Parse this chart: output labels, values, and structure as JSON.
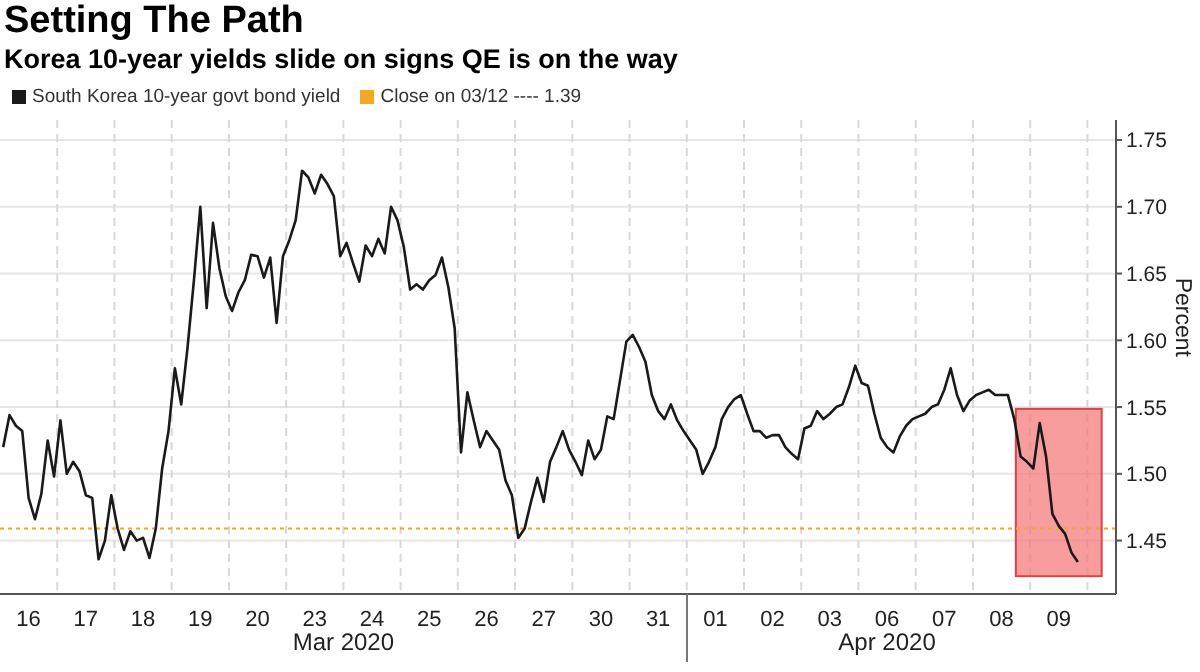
{
  "chart_data": {
    "type": "line",
    "title": "Setting The Path",
    "subtitle": "Korea 10-year yields slide on signs QE is on the way",
    "ylabel": "Percent",
    "annotations": [
      "Mar 2020",
      "Apr 2020"
    ],
    "categories": [
      null,
      null,
      null,
      null,
      "16",
      null,
      null,
      null,
      null,
      null,
      null,
      null,
      null,
      "17",
      null,
      null,
      null,
      null,
      null,
      null,
      null,
      null,
      "18",
      null,
      null,
      null,
      null,
      null,
      null,
      null,
      null,
      "19",
      null,
      null,
      null,
      null,
      null,
      null,
      null,
      null,
      "20",
      null,
      null,
      null,
      null,
      null,
      null,
      null,
      null,
      "23",
      null,
      null,
      null,
      null,
      null,
      null,
      null,
      null,
      "24",
      null,
      null,
      null,
      null,
      null,
      null,
      null,
      null,
      "25",
      null,
      null,
      null,
      null,
      null,
      null,
      null,
      null,
      "26",
      null,
      null,
      null,
      null,
      null,
      null,
      null,
      null,
      "27",
      null,
      null,
      null,
      null,
      null,
      null,
      null,
      null,
      "30",
      null,
      null,
      null,
      null,
      null,
      null,
      null,
      null,
      "31",
      null,
      null,
      null,
      null,
      null,
      null,
      null,
      null,
      "01",
      null,
      null,
      null,
      null,
      null,
      null,
      null,
      null,
      "02",
      null,
      null,
      null,
      null,
      null,
      null,
      null,
      null,
      "03",
      null,
      null,
      null,
      null,
      null,
      null,
      null,
      null,
      "06",
      null,
      null,
      null,
      null,
      null,
      null,
      null,
      null,
      "07",
      null,
      null,
      null,
      null,
      null,
      null,
      null,
      null,
      "08",
      null,
      null,
      null,
      null,
      null,
      null,
      null,
      null,
      "09",
      null,
      null,
      null,
      null
    ],
    "series": [
      {
        "name": "South Korea 10-year govt bond yield",
        "color": "#1a1a1a",
        "values": [
          1.52,
          1.544,
          1.536,
          1.532,
          1.482,
          1.466,
          1.485,
          1.525,
          1.498,
          1.54,
          1.5,
          1.509,
          1.502,
          1.484,
          1.482,
          1.436,
          1.45,
          1.484,
          1.459,
          1.443,
          1.457,
          1.45,
          1.452,
          1.437,
          1.459,
          1.504,
          1.532,
          1.579,
          1.552,
          1.595,
          1.645,
          1.7,
          1.624,
          1.688,
          1.654,
          1.633,
          1.622,
          1.636,
          1.645,
          1.664,
          1.663,
          1.647,
          1.662,
          1.613,
          1.663,
          1.675,
          1.69,
          1.727,
          1.722,
          1.71,
          1.724,
          1.717,
          1.708,
          1.663,
          1.673,
          1.658,
          1.644,
          1.671,
          1.663,
          1.676,
          1.665,
          1.7,
          1.69,
          1.67,
          1.638,
          1.642,
          1.638,
          1.645,
          1.649,
          1.662,
          1.64,
          1.609,
          1.516,
          1.561,
          1.54,
          1.52,
          1.532,
          1.525,
          1.518,
          1.495,
          1.484,
          1.452,
          1.459,
          1.479,
          1.497,
          1.479,
          1.509,
          1.52,
          1.532,
          1.518,
          1.509,
          1.499,
          1.525,
          1.511,
          1.518,
          1.543,
          1.541,
          1.57,
          1.599,
          1.604,
          1.595,
          1.584,
          1.559,
          1.547,
          1.541,
          1.552,
          1.54,
          1.532,
          1.525,
          1.518,
          1.5,
          1.509,
          1.52,
          1.541,
          1.55,
          1.556,
          1.559,
          1.545,
          1.532,
          1.532,
          1.527,
          1.529,
          1.529,
          1.52,
          1.515,
          1.511,
          1.534,
          1.536,
          1.547,
          1.541,
          1.545,
          1.55,
          1.552,
          1.565,
          1.581,
          1.568,
          1.566,
          1.545,
          1.527,
          1.52,
          1.516,
          1.528,
          1.536,
          1.541,
          1.543,
          1.545,
          1.55,
          1.552,
          1.563,
          1.579,
          1.559,
          1.547,
          1.555,
          1.559,
          1.561,
          1.563,
          1.559,
          1.559,
          1.559,
          1.541,
          1.513,
          1.509,
          1.504,
          1.538,
          1.513,
          1.47,
          1.461,
          1.455,
          1.441,
          1.434,
          null
        ]
      }
    ],
    "ylim": [
      1.41,
      1.765
    ],
    "yticks": [
      {
        "value": 1.45,
        "label": "1.45"
      },
      {
        "value": 1.5,
        "label": "1.50"
      },
      {
        "value": 1.55,
        "label": "1.55"
      },
      {
        "value": 1.6,
        "label": "1.60"
      },
      {
        "value": 1.65,
        "label": "1.65"
      },
      {
        "value": 1.7,
        "label": "1.70"
      },
      {
        "value": 1.75,
        "label": "1.75"
      }
    ],
    "ref_lines": [
      {
        "axis": "y",
        "value": 1.459,
        "label": "Close on 03/12 ---- 1.39",
        "color": "#f5a623",
        "line_style": "dotted"
      }
    ],
    "grid": true,
    "legend": "top left",
    "marker": "none",
    "line_style": "solid"
  }
}
